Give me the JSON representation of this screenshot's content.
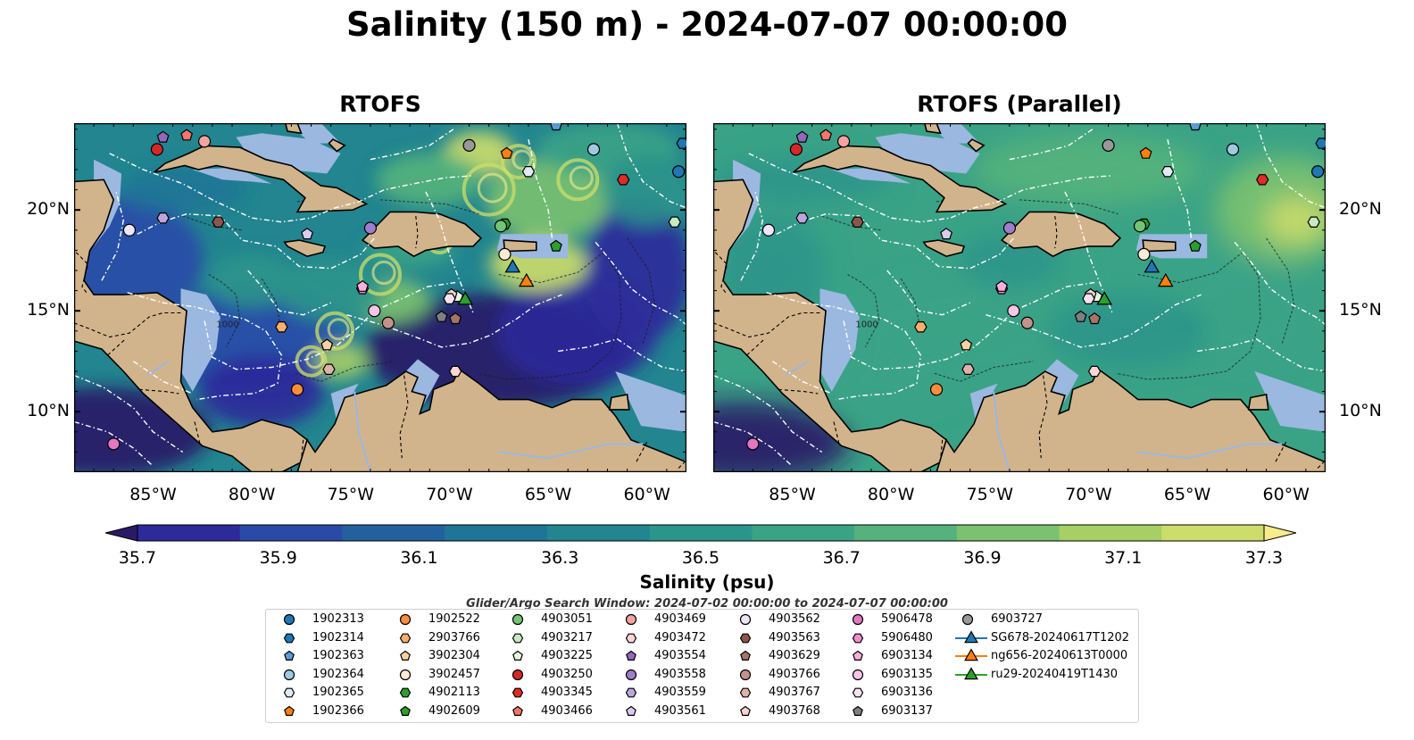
{
  "title": "Salinity (150 m) - 2024-07-07 00:00:00",
  "panels": [
    {
      "title": "RTOFS",
      "variant": "primary"
    },
    {
      "title": "RTOFS (Parallel)",
      "variant": "parallel"
    }
  ],
  "map": {
    "lon_range": [
      -89,
      -58
    ],
    "lat_range": [
      7,
      24.3
    ],
    "lat_ticks": [
      {
        "value": 20,
        "label": "20°N"
      },
      {
        "value": 15,
        "label": "15°N"
      },
      {
        "value": 10,
        "label": "10°N"
      }
    ],
    "lon_ticks": [
      {
        "value": -85,
        "label": "85°W"
      },
      {
        "value": -80,
        "label": "80°W"
      },
      {
        "value": -75,
        "label": "75°W"
      },
      {
        "value": -70,
        "label": "70°W"
      },
      {
        "value": -65,
        "label": "65°W"
      },
      {
        "value": -60,
        "label": "60°W"
      }
    ],
    "isobath_label": "1000",
    "colors": {
      "land": "#d2b48c",
      "shelf": "#9bb8e0",
      "coast": "#000000",
      "eez": "#ffffff"
    }
  },
  "colorbar": {
    "label": "Salinity (psu)",
    "min": 35.7,
    "max": 37.3,
    "ticks": [
      {
        "value": 35.7,
        "label": "35.7"
      },
      {
        "value": 35.9,
        "label": "35.9"
      },
      {
        "value": 36.1,
        "label": "36.1"
      },
      {
        "value": 36.3,
        "label": "36.3"
      },
      {
        "value": 36.5,
        "label": "36.5"
      },
      {
        "value": 36.7,
        "label": "36.7"
      },
      {
        "value": 36.9,
        "label": "36.9"
      },
      {
        "value": 37.1,
        "label": "37.1"
      },
      {
        "value": 37.3,
        "label": "37.3"
      }
    ],
    "colormap": [
      "#2a1a66",
      "#2d2a9a",
      "#2a4aa8",
      "#22619e",
      "#1f7596",
      "#22858f",
      "#2b948b",
      "#3aa386",
      "#55b27c",
      "#7bc170",
      "#a6cf66",
      "#cddd6a",
      "#f5ec8a"
    ]
  },
  "search_window": "Glider/Argo Search Window: 2024-07-02 00:00:00 to 2024-07-07 00:00:00",
  "platforms": [
    {
      "id": "1902313",
      "color": "#1f77b4",
      "marker": "circle",
      "lon": -58.4,
      "lat": 21.9
    },
    {
      "id": "1902314",
      "color": "#1f77b4",
      "marker": "hexagon",
      "lon": -58.2,
      "lat": 23.3
    },
    {
      "id": "1902363",
      "color": "#5b9bd5",
      "marker": "pentagon",
      "lon": -64.6,
      "lat": 24.2
    },
    {
      "id": "1902364",
      "color": "#9ecae1",
      "marker": "circle",
      "lon": -62.7,
      "lat": 23.0
    },
    {
      "id": "1902365",
      "color": "#deebf7",
      "marker": "hexagon",
      "lon": -66.0,
      "lat": 21.9
    },
    {
      "id": "1902366",
      "color": "#ff7f0e",
      "marker": "pentagon",
      "lon": -67.1,
      "lat": 22.8
    },
    {
      "id": "1902522",
      "color": "#fd8d3c",
      "marker": "circle",
      "lon": -77.7,
      "lat": 11.1
    },
    {
      "id": "2903766",
      "color": "#fdae6b",
      "marker": "hexagon",
      "lon": -78.5,
      "lat": 14.2
    },
    {
      "id": "3902304",
      "color": "#fdd0a2",
      "marker": "pentagon",
      "lon": -76.2,
      "lat": 13.3
    },
    {
      "id": "3902457",
      "color": "#feebd6",
      "marker": "circle",
      "lon": -67.2,
      "lat": 17.8
    },
    {
      "id": "4902113",
      "color": "#2ca02c",
      "marker": "hexagon",
      "lon": -67.2,
      "lat": 19.3
    },
    {
      "id": "4902609",
      "color": "#2ca02c",
      "marker": "pentagon",
      "lon": -64.6,
      "lat": 18.2
    },
    {
      "id": "4903051",
      "color": "#74c476",
      "marker": "circle",
      "lon": -67.4,
      "lat": 19.2
    },
    {
      "id": "4903217",
      "color": "#c7e9c0",
      "marker": "hexagon",
      "lon": -58.6,
      "lat": 19.4
    },
    {
      "id": "4903225",
      "color": "#e5f5e0",
      "marker": "pentagon",
      "lon": -69.6,
      "lat": 15.7
    },
    {
      "id": "4903250",
      "color": "#d62728",
      "marker": "circle",
      "lon": -84.8,
      "lat": 23.0
    },
    {
      "id": "4903345",
      "color": "#de2d26",
      "marker": "hexagon",
      "lon": -61.2,
      "lat": 21.5
    },
    {
      "id": "4903466",
      "color": "#f4756b",
      "marker": "pentagon",
      "lon": -83.3,
      "lat": 23.7
    },
    {
      "id": "4903469",
      "color": "#f4a3a3",
      "marker": "circle",
      "lon": -82.4,
      "lat": 23.4
    },
    {
      "id": "4903472",
      "color": "#fcd5d5",
      "marker": "hexagon",
      "lon": -69.7,
      "lat": 12.0
    },
    {
      "id": "4903554",
      "color": "#9467bd",
      "marker": "pentagon",
      "lon": -84.5,
      "lat": 23.6
    },
    {
      "id": "4903558",
      "color": "#9e7ecb",
      "marker": "circle",
      "lon": -74.0,
      "lat": 19.1
    },
    {
      "id": "4903559",
      "color": "#bda6dc",
      "marker": "hexagon",
      "lon": -84.5,
      "lat": 19.6
    },
    {
      "id": "4903561",
      "color": "#d9ccec",
      "marker": "pentagon",
      "lon": -77.2,
      "lat": 18.8
    },
    {
      "id": "4903562",
      "color": "#eee6f7",
      "marker": "circle",
      "lon": -86.2,
      "lat": 19.0
    },
    {
      "id": "4903563",
      "color": "#8c564b",
      "marker": "hexagon",
      "lon": -81.7,
      "lat": 19.4
    },
    {
      "id": "4903629",
      "color": "#a57468",
      "marker": "pentagon",
      "lon": -69.7,
      "lat": 14.6
    },
    {
      "id": "4903766",
      "color": "#c4928a",
      "marker": "circle",
      "lon": -73.1,
      "lat": 14.4
    },
    {
      "id": "4903767",
      "color": "#ddb2aa",
      "marker": "hexagon",
      "lon": -76.1,
      "lat": 12.1
    },
    {
      "id": "4903768",
      "color": "#f2d6d0",
      "marker": "pentagon",
      "lon": -69.9,
      "lat": 15.8
    },
    {
      "id": "5906478",
      "color": "#e377c2",
      "marker": "circle",
      "lon": -87.0,
      "lat": 8.4
    },
    {
      "id": "5906480",
      "color": "#f08ecf",
      "marker": "hexagon",
      "lon": -74.4,
      "lat": 16.1
    },
    {
      "id": "6903134",
      "color": "#f7b0dc",
      "marker": "pentagon",
      "lon": -74.4,
      "lat": 16.2
    },
    {
      "id": "6903135",
      "color": "#fbc5e6",
      "marker": "circle",
      "lon": -73.8,
      "lat": 15.0
    },
    {
      "id": "6903136",
      "color": "#fde2f1",
      "marker": "hexagon",
      "lon": -70.0,
      "lat": 15.6
    },
    {
      "id": "6903137",
      "color": "#7f7f7f",
      "marker": "pentagon",
      "lon": -70.4,
      "lat": 14.7
    },
    {
      "id": "6903727",
      "color": "#999999",
      "marker": "circle",
      "lon": -69.0,
      "lat": 23.2
    }
  ],
  "gliders": [
    {
      "id": "SG678-20240617T1202",
      "color": "#1f77b4",
      "marker": "triangle",
      "lon": -66.8,
      "lat": 17.2
    },
    {
      "id": "ng656-20240613T0000",
      "color": "#ff7f0e",
      "marker": "triangle",
      "lon": -66.1,
      "lat": 16.5
    },
    {
      "id": "ru29-20240419T1430",
      "color": "#2ca02c",
      "marker": "triangle",
      "lon": -69.2,
      "lat": 15.6
    }
  ]
}
